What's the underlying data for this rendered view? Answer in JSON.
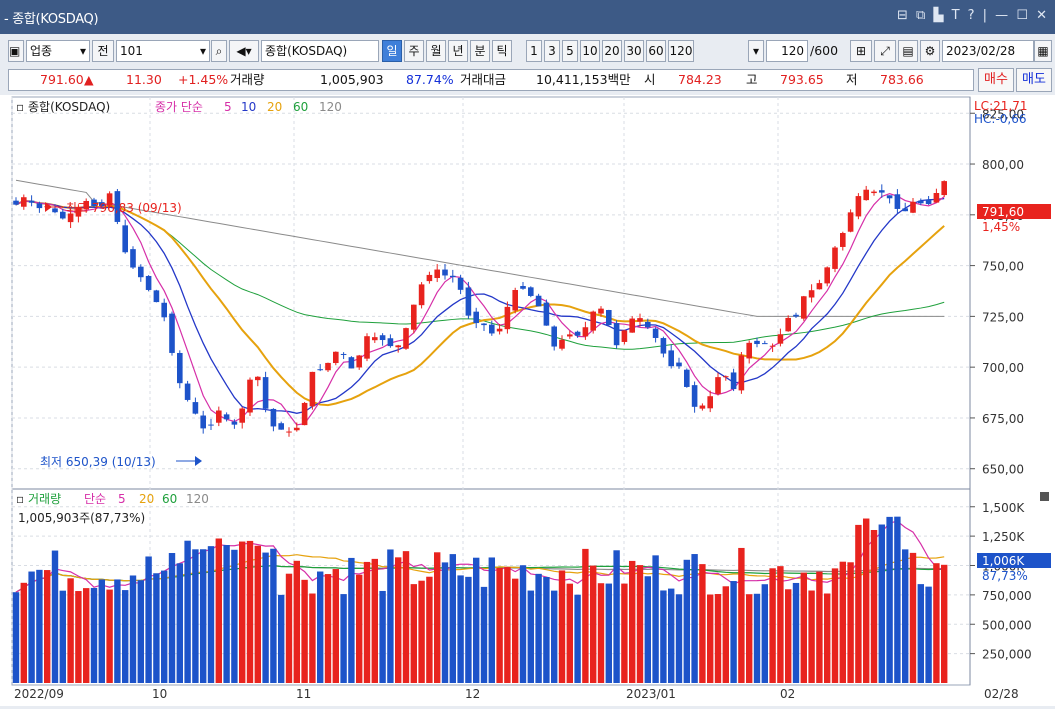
{
  "window": {
    "title": "- 종합(KOSDAQ)",
    "controls": "⊟ ⧉ ▙ T ? | — ☐ ✕"
  },
  "toolbar": {
    "market": "업종",
    "prev_label": "전",
    "code": "101",
    "name": "종합(KOSDAQ)",
    "periods": [
      "일",
      "주",
      "월",
      "년",
      "분",
      "틱"
    ],
    "selected_period": "일",
    "intervals": [
      "1",
      "3",
      "5",
      "10",
      "20",
      "30",
      "60",
      "120"
    ],
    "count": "120",
    "total": "/600",
    "date": "2023/02/28"
  },
  "quote": {
    "price": "791.60",
    "change": "11.30",
    "change_pct": "+1.45%",
    "volume_label": "거래량",
    "volume": "1,005,903",
    "volume_pct": "87.74%",
    "amount_label": "거래대금",
    "amount": "10,411,153백만",
    "open_label": "시",
    "open": "784.23",
    "high_label": "고",
    "high": "793.65",
    "low_label": "저",
    "low": "783.66",
    "buy_label": "매수",
    "sell_label": "매도"
  },
  "price_legend": {
    "name": "종합(KOSDAQ)",
    "ma_label": "종가 단순",
    "periods": [
      "5",
      "10",
      "20",
      "60",
      "120"
    ]
  },
  "volume_legend": {
    "name": "거래량",
    "ma_label": "단순",
    "periods": [
      "5",
      "20",
      "60",
      "120"
    ],
    "current": "1,005,903주(87,73%)"
  },
  "annotations": {
    "high": "최고 796,83 (09/13)",
    "low": "최저 650,39 (10/13)",
    "lc": "LC:21,71",
    "hc": "HC:-0,66",
    "last_price": "791,60",
    "last_pct": "1,45%",
    "last_volume": "1,006K",
    "last_vol_pct": "87,73%"
  },
  "colors": {
    "up": "#e8231e",
    "down": "#1d53c9",
    "ma5": "#d62fa8",
    "ma10": "#2438c8",
    "ma20": "#e6a20e",
    "ma60": "#1fa03c",
    "ma120": "#8a8a8a"
  },
  "chart_data": [
    {
      "type": "candlestick",
      "title": "종합(KOSDAQ)",
      "y_ticks": [
        "825,00",
        "800,00",
        "775,00",
        "750,00",
        "725,00",
        "700,00",
        "675,00",
        "650,00"
      ],
      "ylim": [
        641,
        833
      ],
      "x_labels": [
        "2022/09",
        "10",
        "11",
        "12",
        "2023/01",
        "02",
        "02/28"
      ],
      "n_candles": 120,
      "anchor_closes": [
        780,
        782,
        781,
        778,
        773,
        777,
        777,
        783,
        779,
        784,
        764,
        749,
        741,
        738,
        724,
        701,
        688,
        675,
        668,
        680,
        672,
        673,
        692,
        694,
        675,
        667,
        668,
        675,
        695,
        700,
        707,
        705,
        700,
        713,
        714,
        716,
        705,
        720,
        738,
        742,
        750,
        745,
        739,
        726,
        720,
        716,
        722,
        734,
        740,
        736,
        722,
        712,
        715,
        713,
        722,
        729,
        724,
        712,
        719,
        727,
        720,
        708,
        703,
        700,
        680,
        683,
        685,
        700,
        690,
        708,
        714,
        712,
        707,
        727,
        724,
        737,
        742,
        748,
        763,
        776,
        783,
        790,
        786,
        780,
        778,
        780,
        779,
        785,
        791.6
      ],
      "ma120_approx": [
        788,
        725
      ]
    },
    {
      "type": "bar",
      "title": "거래량",
      "y_ticks": [
        "1,500K",
        "1,250K",
        "1,000K",
        "750,000",
        "500,000",
        "250,000"
      ],
      "ylim": [
        0,
        1600000
      ],
      "last_value": 1005903
    }
  ]
}
